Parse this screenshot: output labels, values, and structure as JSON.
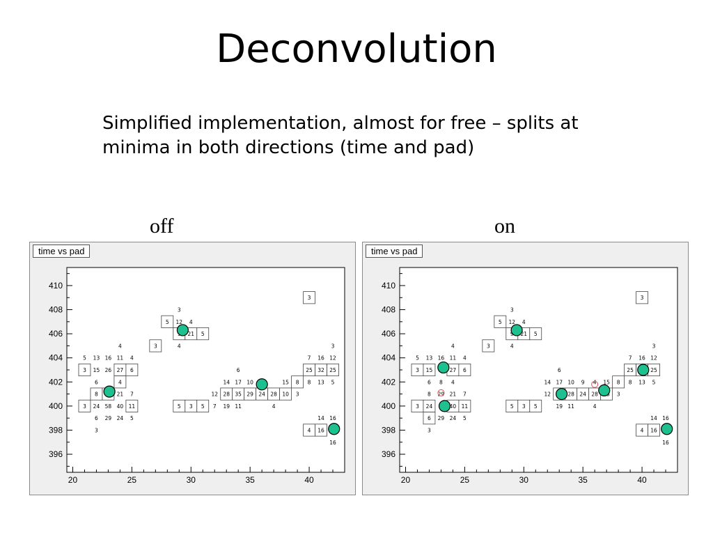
{
  "slide": {
    "title": "Deconvolution",
    "subtitle_line1": "Simplified implementation, almost for free – splits at",
    "subtitle_line2": "minima in both directions (time and pad)"
  },
  "colors": {
    "cluster_marker": "#1fc08f",
    "ghost_marker": "#e05050",
    "frame": "#efefef"
  },
  "chart_data": [
    {
      "type": "heatmap",
      "panel_label": "off",
      "title": "time vs pad",
      "xlim": [
        19.5,
        43
      ],
      "ylim": [
        394.5,
        411.5
      ],
      "xticks": [
        20,
        25,
        30,
        35,
        40
      ],
      "yticks": [
        396,
        398,
        400,
        402,
        404,
        406,
        408,
        410
      ],
      "boxed_cells": [
        {
          "x": 21,
          "y": 403,
          "v": 3
        },
        {
          "x": 24,
          "y": 403,
          "v": 27
        },
        {
          "x": 25,
          "y": 403,
          "v": 6
        },
        {
          "x": 22,
          "y": 401,
          "v": 8
        },
        {
          "x": 23,
          "y": 401,
          "v": 8
        },
        {
          "x": 24,
          "y": 402,
          "v": 4
        },
        {
          "x": 21,
          "y": 400,
          "v": 3
        },
        {
          "x": 25,
          "y": 400,
          "v": 11
        },
        {
          "x": 27,
          "y": 405,
          "v": 3
        },
        {
          "x": 28,
          "y": 407,
          "v": 5
        },
        {
          "x": 29,
          "y": 406,
          "v": 9
        },
        {
          "x": 30,
          "y": 406,
          "v": 21
        },
        {
          "x": 31,
          "y": 406,
          "v": 5
        },
        {
          "x": 29,
          "y": 400,
          "v": 5
        },
        {
          "x": 30,
          "y": 400,
          "v": 3
        },
        {
          "x": 31,
          "y": 400,
          "v": 5
        },
        {
          "x": 33,
          "y": 401,
          "v": 28
        },
        {
          "x": 34,
          "y": 401,
          "v": 35
        },
        {
          "x": 35,
          "y": 401,
          "v": 29
        },
        {
          "x": 36,
          "y": 401,
          "v": 24
        },
        {
          "x": 37,
          "y": 401,
          "v": 28
        },
        {
          "x": 38,
          "y": 401,
          "v": 10
        },
        {
          "x": 39,
          "y": 402,
          "v": 8
        },
        {
          "x": 40,
          "y": 403,
          "v": 25
        },
        {
          "x": 41,
          "y": 403,
          "v": 32
        },
        {
          "x": 42,
          "y": 403,
          "v": 25
        },
        {
          "x": 40,
          "y": 409,
          "v": 3
        },
        {
          "x": 40,
          "y": 398,
          "v": 4
        },
        {
          "x": 41,
          "y": 398,
          "v": 16
        }
      ],
      "cells": [
        {
          "x": 21,
          "y": 404,
          "v": 5
        },
        {
          "x": 22,
          "y": 404,
          "v": 13
        },
        {
          "x": 23,
          "y": 404,
          "v": 16
        },
        {
          "x": 24,
          "y": 404,
          "v": 11
        },
        {
          "x": 25,
          "y": 404,
          "v": 4
        },
        {
          "x": 24,
          "y": 405,
          "v": 4
        },
        {
          "x": 22,
          "y": 403,
          "v": 15
        },
        {
          "x": 23,
          "y": 403,
          "v": 26
        },
        {
          "x": 22,
          "y": 402,
          "v": 6
        },
        {
          "x": 24,
          "y": 401,
          "v": 21
        },
        {
          "x": 25,
          "y": 401,
          "v": 7
        },
        {
          "x": 22,
          "y": 400,
          "v": 24
        },
        {
          "x": 23,
          "y": 400,
          "v": 58
        },
        {
          "x": 24,
          "y": 400,
          "v": 40
        },
        {
          "x": 22,
          "y": 399,
          "v": 6
        },
        {
          "x": 23,
          "y": 399,
          "v": 29
        },
        {
          "x": 24,
          "y": 399,
          "v": 24
        },
        {
          "x": 25,
          "y": 399,
          "v": 5
        },
        {
          "x": 22,
          "y": 398,
          "v": 3
        },
        {
          "x": 29,
          "y": 408,
          "v": 3
        },
        {
          "x": 29,
          "y": 407,
          "v": 12
        },
        {
          "x": 30,
          "y": 407,
          "v": 4
        },
        {
          "x": 29,
          "y": 405,
          "v": 4
        },
        {
          "x": 32,
          "y": 401,
          "v": 12
        },
        {
          "x": 33,
          "y": 402,
          "v": 14
        },
        {
          "x": 34,
          "y": 402,
          "v": 17
        },
        {
          "x": 35,
          "y": 402,
          "v": 10
        },
        {
          "x": 36,
          "y": 402,
          "v": 9
        },
        {
          "x": 38,
          "y": 402,
          "v": 15
        },
        {
          "x": 34,
          "y": 403,
          "v": 6
        },
        {
          "x": 32,
          "y": 400,
          "v": 7
        },
        {
          "x": 33,
          "y": 400,
          "v": 19
        },
        {
          "x": 34,
          "y": 400,
          "v": 11
        },
        {
          "x": 37,
          "y": 400,
          "v": 4
        },
        {
          "x": 39,
          "y": 401,
          "v": 3
        },
        {
          "x": 40,
          "y": 402,
          "v": 8
        },
        {
          "x": 41,
          "y": 402,
          "v": 13
        },
        {
          "x": 42,
          "y": 402,
          "v": 5
        },
        {
          "x": 40,
          "y": 404,
          "v": 7
        },
        {
          "x": 41,
          "y": 404,
          "v": 16
        },
        {
          "x": 42,
          "y": 404,
          "v": 12
        },
        {
          "x": 42,
          "y": 405,
          "v": 3
        },
        {
          "x": 41,
          "y": 399,
          "v": 14
        },
        {
          "x": 42,
          "y": 399,
          "v": 16
        },
        {
          "x": 42,
          "y": 397,
          "v": 16
        }
      ],
      "clusters": [
        {
          "x": 23.1,
          "y": 401.2
        },
        {
          "x": 29.3,
          "y": 406.3
        },
        {
          "x": 36.0,
          "y": 401.8
        },
        {
          "x": 42.1,
          "y": 398.1
        }
      ],
      "ghosts": []
    },
    {
      "type": "heatmap",
      "panel_label": "on",
      "title": "time vs pad",
      "xlim": [
        19.5,
        43
      ],
      "ylim": [
        394.5,
        411.5
      ],
      "xticks": [
        20,
        25,
        30,
        35,
        40
      ],
      "yticks": [
        396,
        398,
        400,
        402,
        404,
        406,
        408,
        410
      ],
      "boxed_cells": [
        {
          "x": 21,
          "y": 403,
          "v": 3
        },
        {
          "x": 22,
          "y": 403,
          "v": 15
        },
        {
          "x": 24,
          "y": 403,
          "v": 27
        },
        {
          "x": 25,
          "y": 403,
          "v": 6
        },
        {
          "x": 21,
          "y": 400,
          "v": 3
        },
        {
          "x": 22,
          "y": 400,
          "v": 24
        },
        {
          "x": 24,
          "y": 400,
          "v": 40
        },
        {
          "x": 25,
          "y": 400,
          "v": 11
        },
        {
          "x": 22,
          "y": 399,
          "v": 6
        },
        {
          "x": 27,
          "y": 405,
          "v": 3
        },
        {
          "x": 28,
          "y": 407,
          "v": 5
        },
        {
          "x": 29,
          "y": 406,
          "v": 9
        },
        {
          "x": 30,
          "y": 406,
          "v": 21
        },
        {
          "x": 31,
          "y": 406,
          "v": 5
        },
        {
          "x": 29,
          "y": 400,
          "v": 5
        },
        {
          "x": 30,
          "y": 400,
          "v": 3
        },
        {
          "x": 31,
          "y": 400,
          "v": 5
        },
        {
          "x": 33,
          "y": 401,
          "v": 28
        },
        {
          "x": 34,
          "y": 401,
          "v": 28
        },
        {
          "x": 35,
          "y": 401,
          "v": 24
        },
        {
          "x": 36,
          "y": 401,
          "v": 28
        },
        {
          "x": 37,
          "y": 401,
          "v": 15
        },
        {
          "x": 38,
          "y": 402,
          "v": 8
        },
        {
          "x": 39,
          "y": 403,
          "v": 25
        },
        {
          "x": 40,
          "y": 403,
          "v": 25
        },
        {
          "x": 41,
          "y": 403,
          "v": 25
        },
        {
          "x": 40,
          "y": 409,
          "v": 3
        },
        {
          "x": 40,
          "y": 398,
          "v": 4
        },
        {
          "x": 41,
          "y": 398,
          "v": 16
        }
      ],
      "cells": [
        {
          "x": 21,
          "y": 404,
          "v": 5
        },
        {
          "x": 22,
          "y": 404,
          "v": 13
        },
        {
          "x": 23,
          "y": 404,
          "v": 16
        },
        {
          "x": 24,
          "y": 404,
          "v": 11
        },
        {
          "x": 25,
          "y": 404,
          "v": 4
        },
        {
          "x": 24,
          "y": 405,
          "v": 4
        },
        {
          "x": 22,
          "y": 402,
          "v": 6
        },
        {
          "x": 23,
          "y": 402,
          "v": 8
        },
        {
          "x": 24,
          "y": 402,
          "v": 4
        },
        {
          "x": 22,
          "y": 401,
          "v": 8
        },
        {
          "x": 23,
          "y": 401,
          "v": 29
        },
        {
          "x": 24,
          "y": 401,
          "v": 21
        },
        {
          "x": 25,
          "y": 401,
          "v": 7
        },
        {
          "x": 23,
          "y": 399,
          "v": 29
        },
        {
          "x": 24,
          "y": 399,
          "v": 24
        },
        {
          "x": 25,
          "y": 399,
          "v": 5
        },
        {
          "x": 22,
          "y": 398,
          "v": 3
        },
        {
          "x": 29,
          "y": 408,
          "v": 3
        },
        {
          "x": 29,
          "y": 407,
          "v": 12
        },
        {
          "x": 30,
          "y": 407,
          "v": 4
        },
        {
          "x": 29,
          "y": 405,
          "v": 4
        },
        {
          "x": 32,
          "y": 401,
          "v": 12
        },
        {
          "x": 32,
          "y": 402,
          "v": 14
        },
        {
          "x": 33,
          "y": 402,
          "v": 17
        },
        {
          "x": 34,
          "y": 402,
          "v": 10
        },
        {
          "x": 35,
          "y": 402,
          "v": 9
        },
        {
          "x": 36,
          "y": 402,
          "v": 4
        },
        {
          "x": 37,
          "y": 402,
          "v": 15
        },
        {
          "x": 33,
          "y": 403,
          "v": 6
        },
        {
          "x": 33,
          "y": 400,
          "v": 19
        },
        {
          "x": 34,
          "y": 400,
          "v": 11
        },
        {
          "x": 36,
          "y": 400,
          "v": 4
        },
        {
          "x": 38,
          "y": 401,
          "v": 3
        },
        {
          "x": 39,
          "y": 402,
          "v": 8
        },
        {
          "x": 40,
          "y": 402,
          "v": 13
        },
        {
          "x": 41,
          "y": 402,
          "v": 5
        },
        {
          "x": 39,
          "y": 404,
          "v": 7
        },
        {
          "x": 40,
          "y": 404,
          "v": 16
        },
        {
          "x": 41,
          "y": 404,
          "v": 12
        },
        {
          "x": 41,
          "y": 405,
          "v": 3
        },
        {
          "x": 41,
          "y": 399,
          "v": 14
        },
        {
          "x": 42,
          "y": 399,
          "v": 16
        },
        {
          "x": 42,
          "y": 397,
          "v": 16
        }
      ],
      "clusters": [
        {
          "x": 23.2,
          "y": 403.2
        },
        {
          "x": 23.3,
          "y": 400.0
        },
        {
          "x": 29.4,
          "y": 406.3
        },
        {
          "x": 33.2,
          "y": 401.0
        },
        {
          "x": 36.8,
          "y": 401.3
        },
        {
          "x": 40.1,
          "y": 403.0
        },
        {
          "x": 42.1,
          "y": 398.1
        }
      ],
      "ghosts": [
        {
          "x": 23.0,
          "y": 401.1
        },
        {
          "x": 36.0,
          "y": 401.8
        }
      ]
    }
  ]
}
